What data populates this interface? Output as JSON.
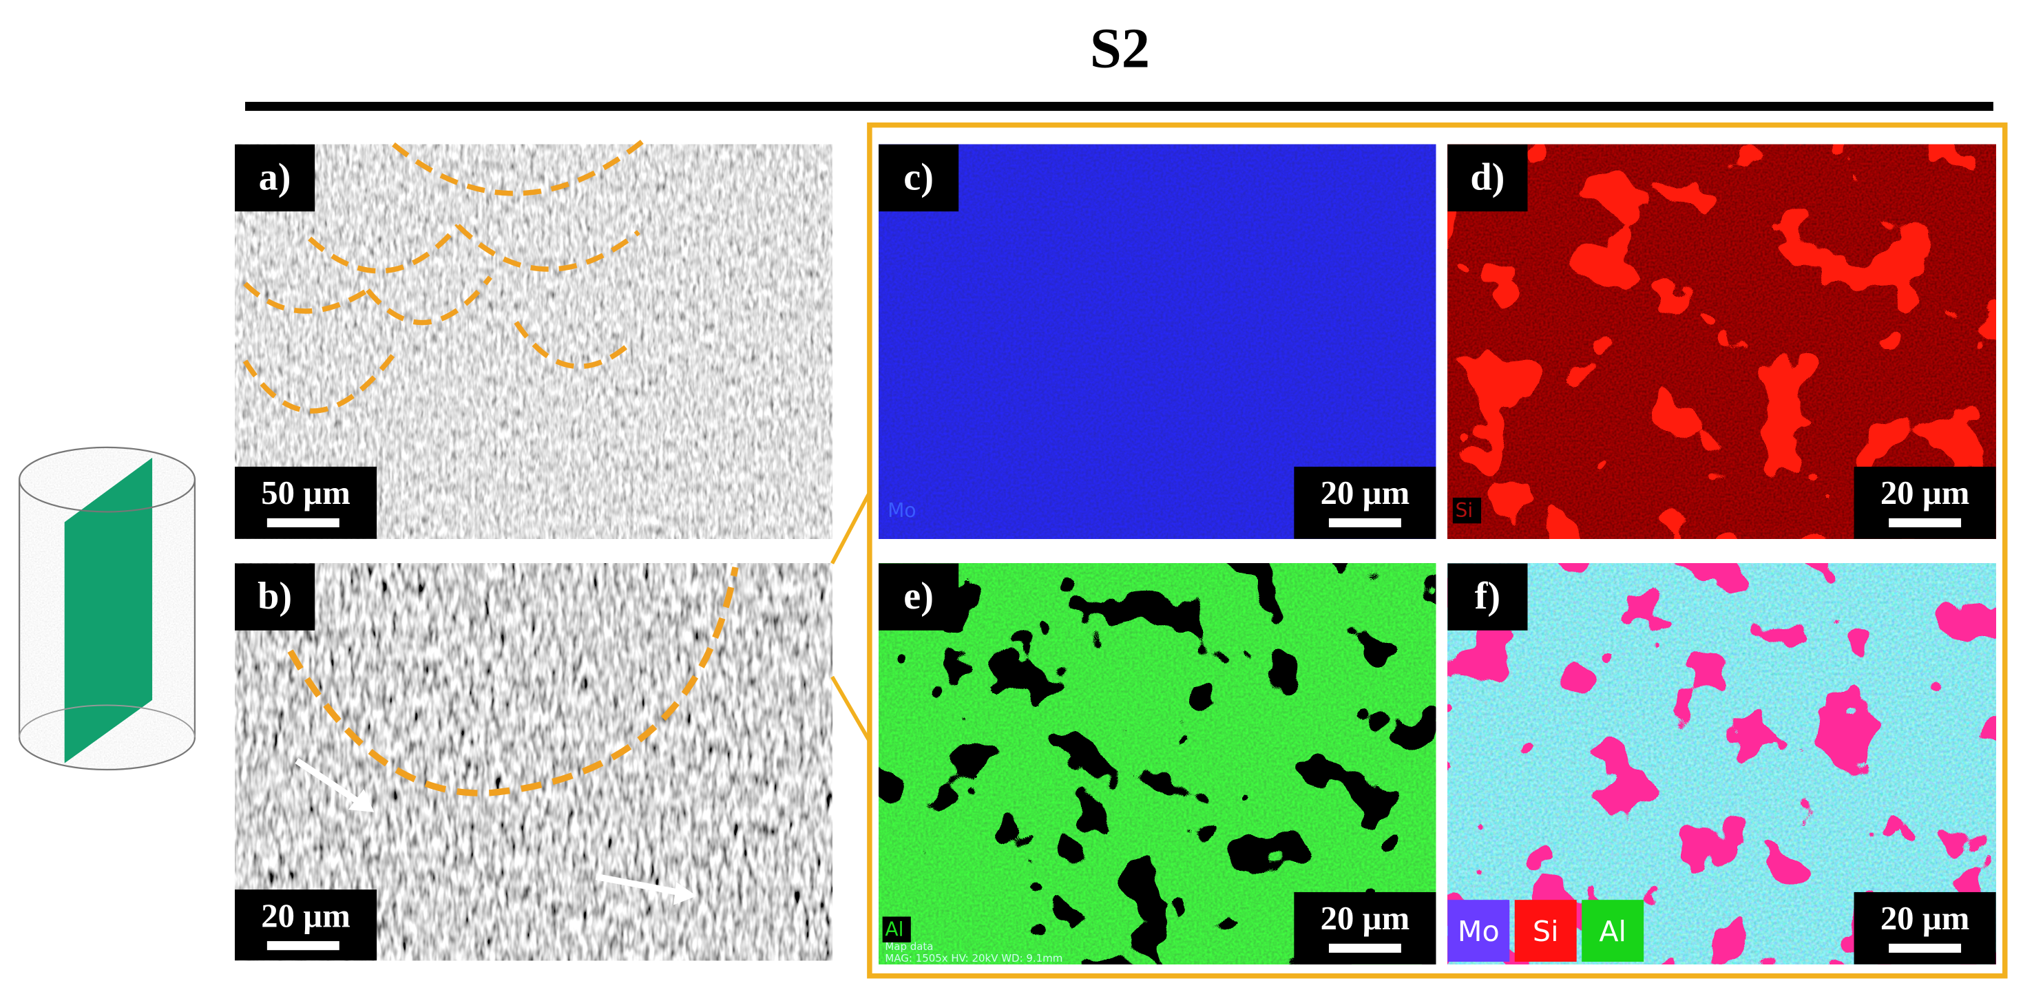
{
  "title": "S2",
  "panels": [
    {
      "label": "a)",
      "scale_bar": "50 µm"
    },
    {
      "label": "b)",
      "scale_bar": "20 µm"
    },
    {
      "label": "c)",
      "scale_bar": "20 µm",
      "element": "Mo"
    },
    {
      "label": "d)",
      "scale_bar": "20 µm",
      "element": "Si"
    },
    {
      "label": "e)",
      "scale_bar": "20 µm",
      "element": "Al",
      "map_info": [
        "Map data",
        "MAG: 1505x HV: 20kV WD: 9.1mm"
      ]
    },
    {
      "label": "f)",
      "scale_bar": "20 µm",
      "legend": [
        "Mo",
        "Si",
        "Al"
      ]
    }
  ]
}
